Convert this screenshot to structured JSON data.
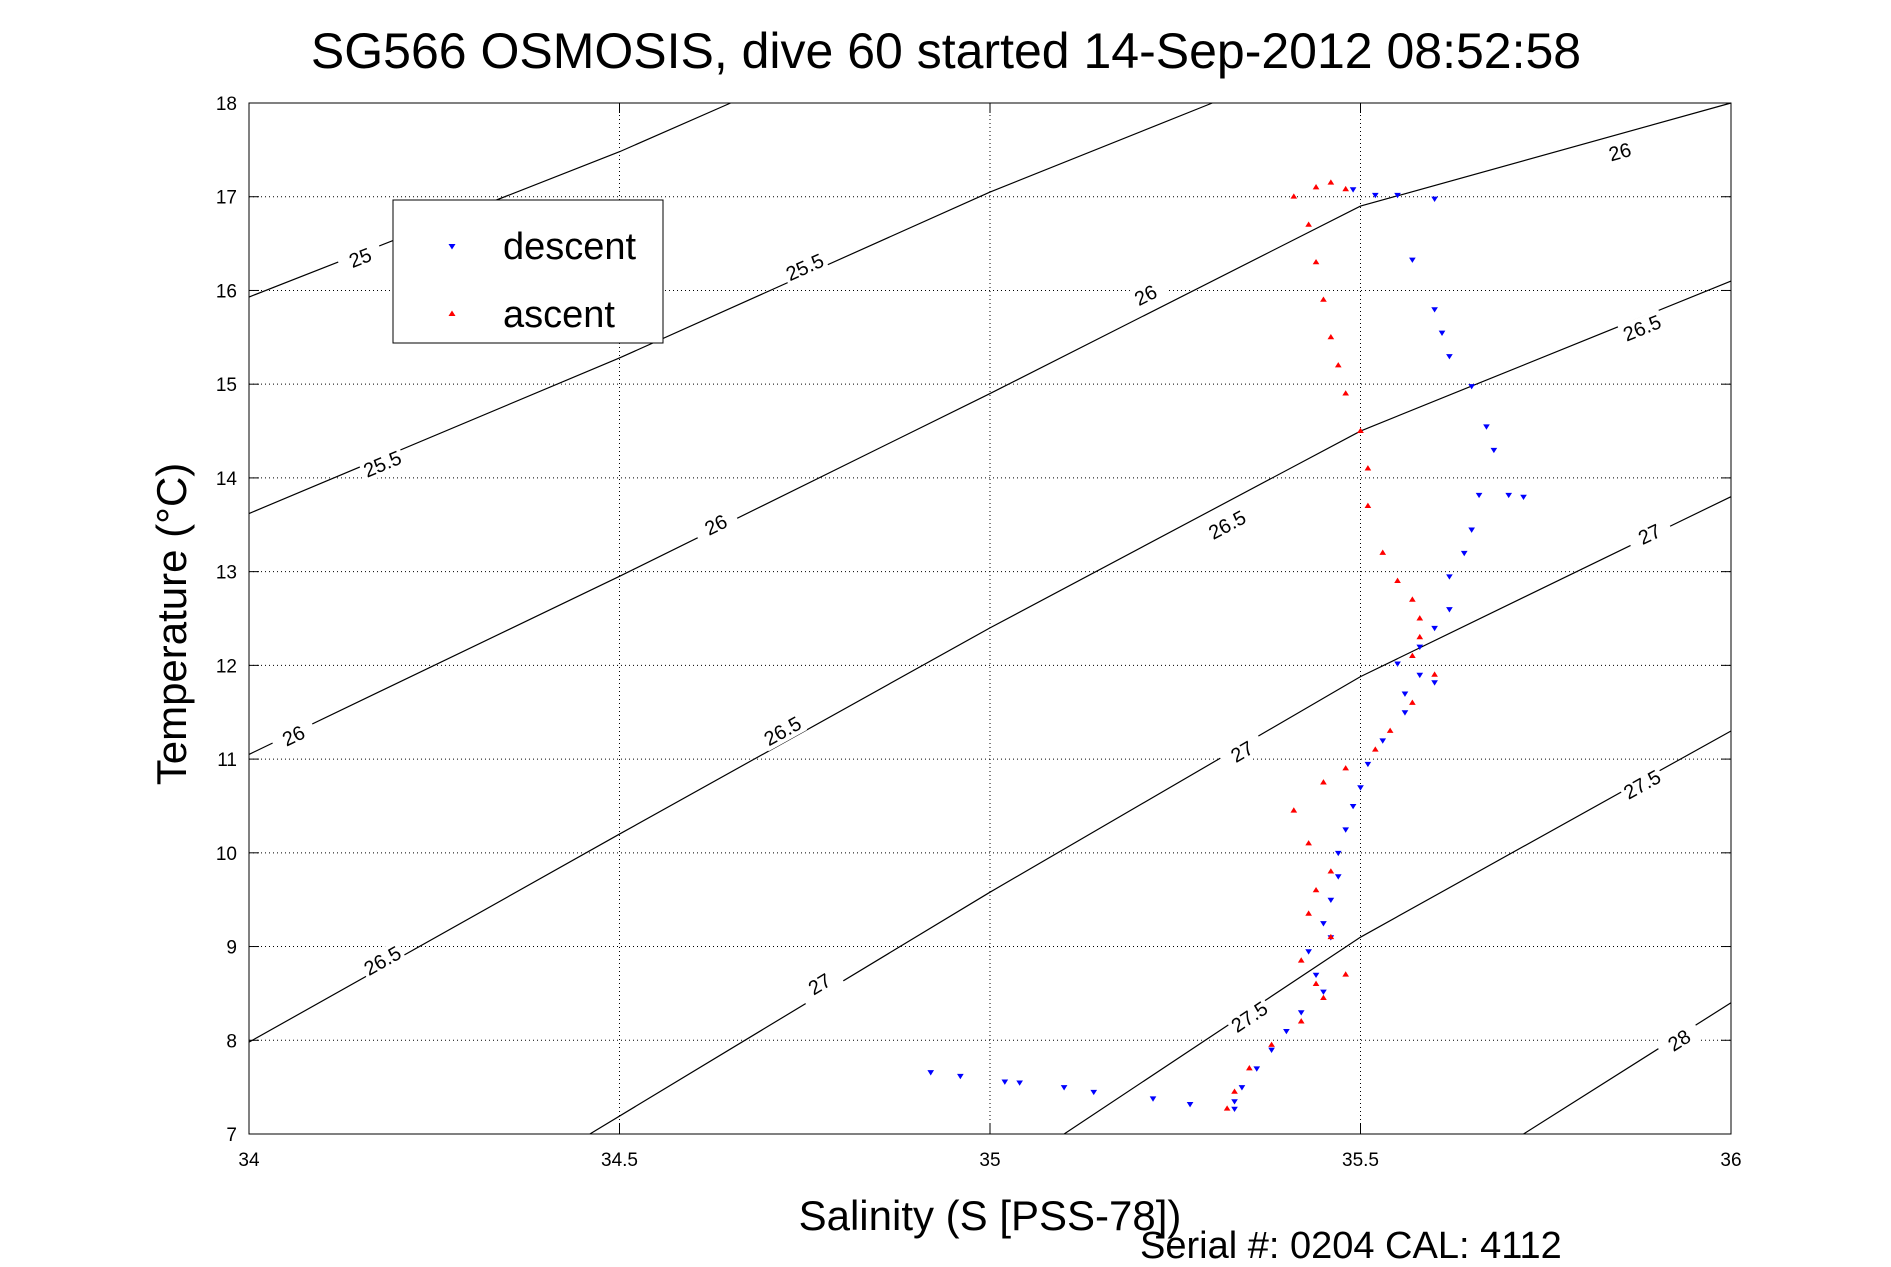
{
  "chart_data": {
    "type": "scatter",
    "title": "SG566 OSMOSIS, dive 60 started 14-Sep-2012 08:52:58",
    "xlabel": "Salinity (S [PSS-78])",
    "ylabel": "Temperature (°C)",
    "xlim": [
      34,
      36
    ],
    "ylim": [
      7,
      18
    ],
    "x_ticks": [
      "34",
      "34.5",
      "35",
      "35.5",
      "36"
    ],
    "y_ticks": [
      "7",
      "8",
      "9",
      "10",
      "11",
      "12",
      "13",
      "14",
      "15",
      "16",
      "17",
      "18"
    ],
    "grid": true,
    "legend_position": "top-left",
    "footer": "Serial #: 0204  CAL: 4112",
    "density_contours": [
      {
        "label": "25",
        "points": [
          [
            34.0,
            15.93
          ],
          [
            34.5,
            17.48
          ],
          [
            34.65,
            18.0
          ]
        ],
        "label_pos": [
          34.15,
          16.35
        ]
      },
      {
        "label": "25.5",
        "points": [
          [
            34.0,
            13.62
          ],
          [
            34.5,
            15.28
          ],
          [
            35.0,
            17.05
          ],
          [
            35.3,
            18.0
          ]
        ],
        "label_pos": [
          34.18,
          14.15
        ],
        "label2": "25.5",
        "label2_pos": [
          34.75,
          16.25
        ]
      },
      {
        "label": "26",
        "points": [
          [
            34.0,
            11.05
          ],
          [
            34.5,
            12.95
          ],
          [
            35.0,
            14.9
          ],
          [
            35.5,
            16.9
          ],
          [
            36.0,
            18.0
          ]
        ],
        "label_pos": [
          34.06,
          11.25
        ],
        "label2": "26",
        "label2_pos": [
          34.63,
          13.5
        ],
        "label3": "26",
        "label3_pos": [
          35.21,
          15.95
        ],
        "label4": "26",
        "label4_pos": [
          35.85,
          17.48
        ]
      },
      {
        "label": "26.5",
        "points": [
          [
            34.0,
            7.98
          ],
          [
            34.5,
            10.2
          ],
          [
            35.0,
            12.4
          ],
          [
            35.5,
            14.5
          ],
          [
            36.0,
            16.1
          ]
        ],
        "label_pos": [
          34.18,
          8.85
        ],
        "label2": "26.5",
        "label2_pos": [
          34.72,
          11.3
        ],
        "label3": "26.5",
        "label3_pos": [
          35.32,
          13.5
        ],
        "label4": "26.5",
        "label4_pos": [
          35.88,
          15.6
        ]
      },
      {
        "label": "27",
        "points": [
          [
            34.46,
            7.0
          ],
          [
            35.0,
            9.58
          ],
          [
            35.5,
            11.88
          ],
          [
            36.0,
            13.8
          ]
        ],
        "label_pos": [
          34.77,
          8.6
        ],
        "label2": "27",
        "label2_pos": [
          35.34,
          11.08
        ],
        "label3": "27",
        "label3_pos": [
          35.89,
          13.4
        ]
      },
      {
        "label": "27.5",
        "points": [
          [
            35.1,
            7.0
          ],
          [
            35.5,
            9.1
          ],
          [
            36.0,
            11.3
          ]
        ],
        "label_pos": [
          35.35,
          8.25
        ],
        "label2": "27.5",
        "label2_pos": [
          35.88,
          10.73
        ]
      },
      {
        "label": "28",
        "points": [
          [
            35.72,
            7.0
          ],
          [
            36.0,
            8.4
          ]
        ],
        "label_pos": [
          35.93,
          8.0
        ]
      }
    ],
    "series": [
      {
        "name": "descent",
        "color": "#0000ff",
        "marker": "triangle-down",
        "points": [
          [
            35.49,
            17.08
          ],
          [
            35.52,
            17.02
          ],
          [
            35.55,
            17.02
          ],
          [
            35.6,
            16.98
          ],
          [
            35.57,
            16.33
          ],
          [
            35.6,
            15.8
          ],
          [
            35.61,
            15.55
          ],
          [
            35.62,
            15.3
          ],
          [
            35.65,
            14.98
          ],
          [
            35.67,
            14.55
          ],
          [
            35.68,
            14.3
          ],
          [
            35.66,
            13.82
          ],
          [
            35.7,
            13.82
          ],
          [
            35.72,
            13.8
          ],
          [
            35.65,
            13.45
          ],
          [
            35.64,
            13.2
          ],
          [
            35.62,
            12.95
          ],
          [
            35.62,
            12.6
          ],
          [
            35.6,
            12.4
          ],
          [
            35.58,
            12.2
          ],
          [
            35.55,
            12.02
          ],
          [
            35.58,
            11.9
          ],
          [
            35.6,
            11.82
          ],
          [
            35.56,
            11.7
          ],
          [
            35.56,
            11.5
          ],
          [
            35.53,
            11.2
          ],
          [
            35.51,
            10.95
          ],
          [
            35.5,
            10.7
          ],
          [
            35.49,
            10.5
          ],
          [
            35.48,
            10.25
          ],
          [
            35.47,
            10.0
          ],
          [
            35.47,
            9.75
          ],
          [
            35.46,
            9.5
          ],
          [
            35.45,
            9.25
          ],
          [
            35.46,
            9.1
          ],
          [
            35.43,
            8.95
          ],
          [
            35.44,
            8.7
          ],
          [
            35.45,
            8.52
          ],
          [
            35.42,
            8.3
          ],
          [
            35.4,
            8.1
          ],
          [
            35.38,
            7.9
          ],
          [
            35.36,
            7.7
          ],
          [
            35.34,
            7.5
          ],
          [
            35.33,
            7.35
          ],
          [
            35.33,
            7.27
          ],
          [
            35.27,
            7.32
          ],
          [
            35.22,
            7.38
          ],
          [
            35.14,
            7.45
          ],
          [
            35.1,
            7.5
          ],
          [
            35.04,
            7.55
          ],
          [
            35.02,
            7.56
          ],
          [
            34.96,
            7.62
          ],
          [
            34.92,
            7.66
          ]
        ]
      },
      {
        "name": "ascent",
        "color": "#ff0000",
        "marker": "triangle-up",
        "points": [
          [
            35.32,
            7.27
          ],
          [
            35.33,
            7.45
          ],
          [
            35.35,
            7.7
          ],
          [
            35.38,
            7.95
          ],
          [
            35.42,
            8.2
          ],
          [
            35.45,
            8.45
          ],
          [
            35.48,
            8.7
          ],
          [
            35.44,
            8.6
          ],
          [
            35.42,
            8.85
          ],
          [
            35.46,
            9.1
          ],
          [
            35.43,
            9.35
          ],
          [
            35.44,
            9.6
          ],
          [
            35.46,
            9.8
          ],
          [
            35.43,
            10.1
          ],
          [
            35.41,
            10.45
          ],
          [
            35.45,
            10.75
          ],
          [
            35.48,
            10.9
          ],
          [
            35.52,
            11.1
          ],
          [
            35.54,
            11.3
          ],
          [
            35.57,
            11.6
          ],
          [
            35.6,
            11.9
          ],
          [
            35.57,
            12.1
          ],
          [
            35.58,
            12.3
          ],
          [
            35.58,
            12.5
          ],
          [
            35.57,
            12.7
          ],
          [
            35.55,
            12.9
          ],
          [
            35.53,
            13.2
          ],
          [
            35.51,
            13.7
          ],
          [
            35.51,
            14.1
          ],
          [
            35.5,
            14.5
          ],
          [
            35.48,
            14.9
          ],
          [
            35.47,
            15.2
          ],
          [
            35.46,
            15.5
          ],
          [
            35.45,
            15.9
          ],
          [
            35.44,
            16.3
          ],
          [
            35.43,
            16.7
          ],
          [
            35.41,
            17.0
          ],
          [
            35.44,
            17.1
          ],
          [
            35.46,
            17.15
          ],
          [
            35.48,
            17.08
          ]
        ]
      }
    ]
  }
}
